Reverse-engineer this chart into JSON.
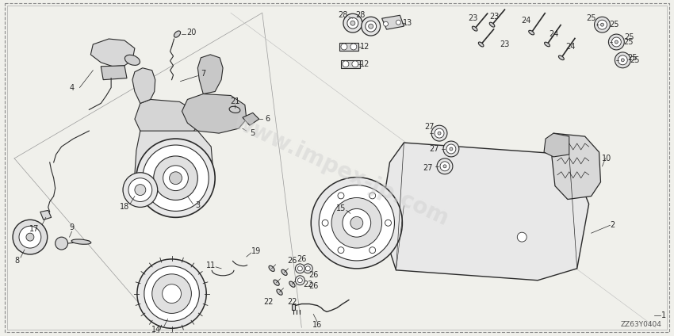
{
  "bg": "#f5f5f0",
  "lc": "#2a2a2a",
  "watermark": "www.impex-jp.com",
  "wm_color": "#cccccc",
  "code": "ZZ63Y0404",
  "fw": 8.5,
  "fh": 4.24,
  "dpi": 100
}
